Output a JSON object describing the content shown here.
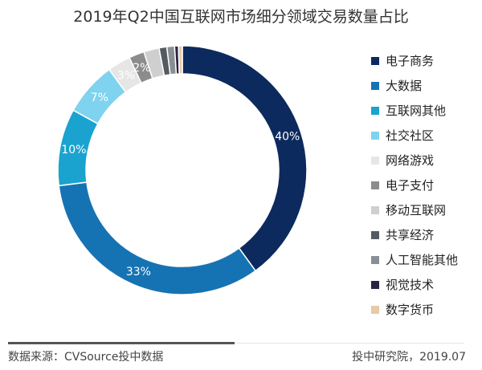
{
  "chart_data": {
    "type": "pie",
    "title": "2019年Q2中国互联网市场细分领域交易数量占比",
    "categories": [
      "电子商务",
      "大数据",
      "互联网其他",
      "社交社区",
      "网络游戏",
      "电子支付",
      "移动互联网",
      "共享经济",
      "人工智能其他",
      "视觉技术",
      "数字货币"
    ],
    "values": [
      40,
      33,
      10,
      7,
      3,
      2,
      2,
      1,
      1,
      0.5,
      0.5
    ],
    "data_labels": [
      "40%",
      "33%",
      "10%",
      "7%",
      "3%",
      "2%",
      "",
      "",
      "",
      "",
      ""
    ],
    "colors": [
      "#0d2a5e",
      "#1673b3",
      "#1aa3cf",
      "#7fd3ee",
      "#e6e6e6",
      "#8c8c8c",
      "#cfcfcf",
      "#555a60",
      "#8a8f96",
      "#2a2440",
      "#e9c9a8"
    ],
    "donut": true,
    "legend": "right"
  },
  "footer": {
    "source": "数据来源：CVSource投中数据",
    "credit": "投中研究院，2019.07"
  }
}
